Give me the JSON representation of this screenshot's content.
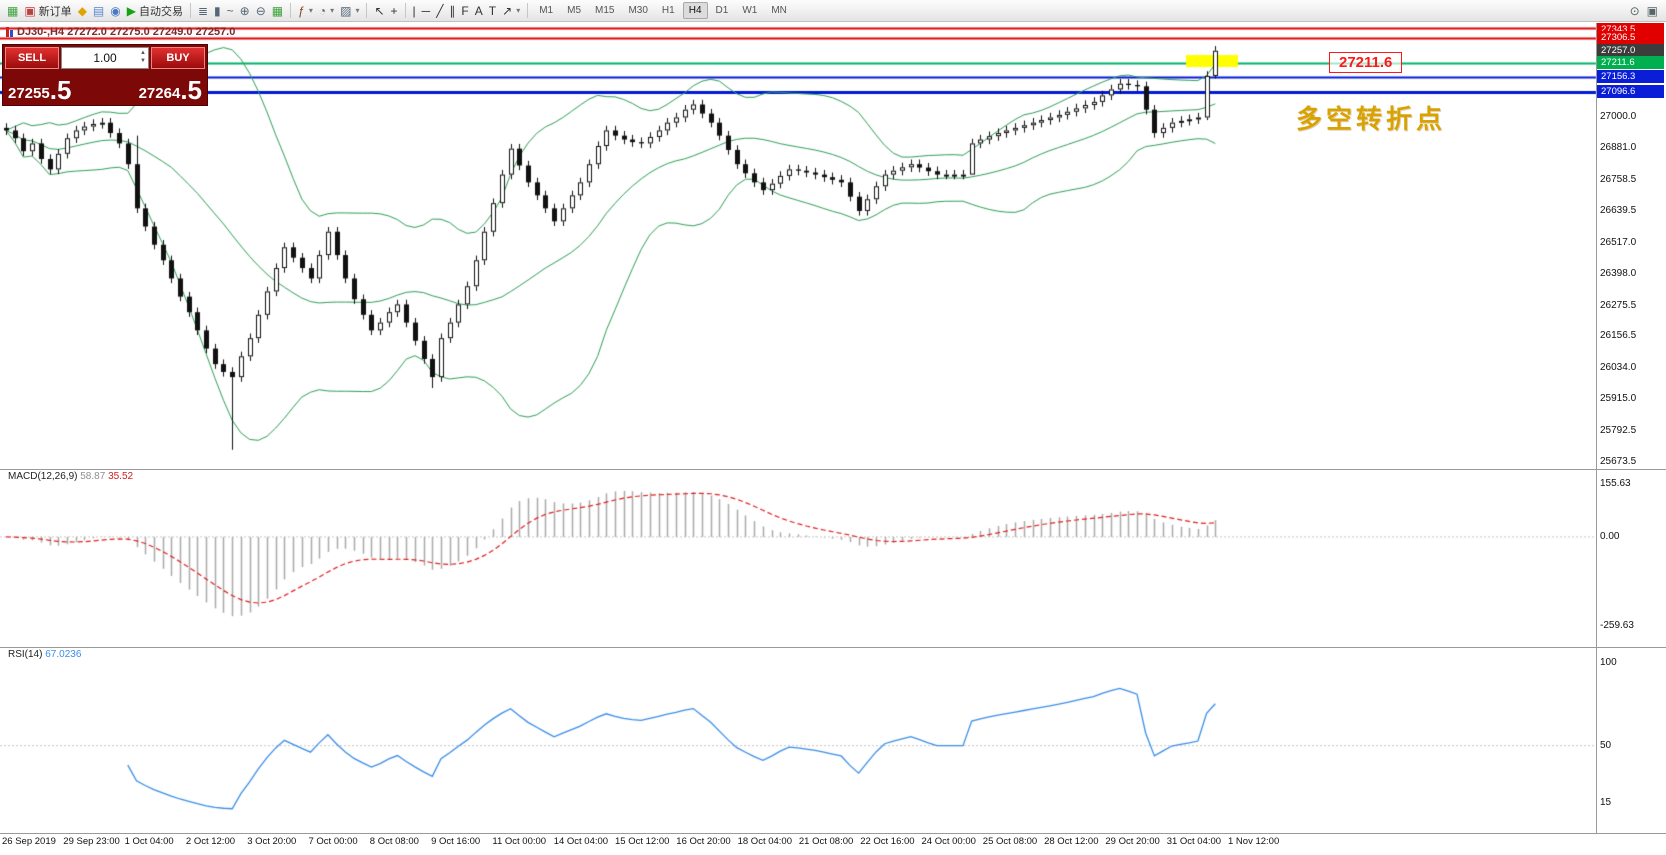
{
  "toolbar": {
    "items": [
      {
        "name": "new-chart-icon",
        "glyph": "▦",
        "color": "#3aa13a"
      },
      {
        "name": "new-order-button",
        "glyph": "▣",
        "color": "#c04040",
        "label": "新订单"
      },
      {
        "name": "alert-icon",
        "glyph": "◆",
        "color": "#e0a400"
      },
      {
        "name": "chart-window-icon",
        "glyph": "▤",
        "color": "#5a86d0"
      },
      {
        "name": "market-watch-icon",
        "glyph": "◉",
        "color": "#4a78c8"
      },
      {
        "name": "autotrade-button",
        "glyph": "▶",
        "color": "#18a018",
        "label": "自动交易"
      },
      {
        "sep": true
      },
      {
        "name": "bar-chart-icon",
        "glyph": "≣",
        "color": "#556677"
      },
      {
        "name": "candlestick-icon",
        "glyph": "▮",
        "color": "#556677"
      },
      {
        "name": "line-chart-icon",
        "glyph": "~",
        "color": "#556677"
      },
      {
        "name": "zoom-in-icon",
        "glyph": "⊕",
        "color": "#556677"
      },
      {
        "name": "zoom-out-icon",
        "glyph": "⊖",
        "color": "#556677"
      },
      {
        "name": "grid-icon",
        "glyph": "▦",
        "color": "#3aa13a"
      },
      {
        "sep": true
      },
      {
        "name": "indicators-icon",
        "glyph": "ƒ",
        "color": "#884422",
        "dropdown": true
      },
      {
        "name": "periods-icon",
        "glyph": "◔",
        "color": "#556677",
        "dropdown": true
      },
      {
        "name": "templates-icon",
        "glyph": "▨",
        "color": "#556677",
        "dropdown": true
      },
      {
        "sep": true
      },
      {
        "name": "cursor-icon",
        "glyph": "↖",
        "color": "#333333"
      },
      {
        "name": "crosshair-icon",
        "glyph": "+",
        "color": "#333333"
      },
      {
        "sep": true
      },
      {
        "name": "vline-icon",
        "glyph": "|",
        "color": "#333333"
      },
      {
        "name": "hline-icon",
        "glyph": "─",
        "color": "#333333"
      },
      {
        "name": "trendline-icon",
        "glyph": "╱",
        "color": "#333333"
      },
      {
        "name": "channel-icon",
        "glyph": "∥",
        "color": "#333333"
      },
      {
        "name": "fibonacci-icon",
        "glyph": "F",
        "color": "#333333"
      },
      {
        "name": "text-icon",
        "glyph": "A",
        "color": "#333333"
      },
      {
        "name": "label-icon",
        "glyph": "T",
        "color": "#333333"
      },
      {
        "name": "arrows-icon",
        "glyph": "↗",
        "color": "#333333",
        "dropdown": true
      },
      {
        "sep": true
      }
    ],
    "timeframes": [
      "M1",
      "M5",
      "M15",
      "M30",
      "H1",
      "H4",
      "D1",
      "W1",
      "MN"
    ],
    "active_timeframe": "H4",
    "right_icons": [
      {
        "name": "search-icon",
        "glyph": "⊙"
      },
      {
        "name": "window-icon",
        "glyph": "▣"
      }
    ]
  },
  "trade_panel": {
    "sell_label": "SELL",
    "buy_label": "BUY",
    "volume": "1.00",
    "sell_price_main": "27255",
    "sell_price_big": ".5",
    "buy_price_main": "27264",
    "buy_price_big": ".5"
  },
  "chart_data": {
    "type": "candlestick",
    "title": "DJ30-,H4 27272.0 27275.0 27249.0 27257.0",
    "symbol": "DJ30-",
    "period": "H4",
    "ohlc_display": {
      "open": "27272.0",
      "high": "27275.0",
      "low": "27249.0",
      "close": "27257.0"
    },
    "ylim": [
      25650,
      27360
    ],
    "y_axis_labels": [
      "27000.0",
      "26881.0",
      "26758.5",
      "26639.5",
      "26517.0",
      "26398.0",
      "26275.5",
      "26156.5",
      "26034.0",
      "25915.0",
      "25792.5",
      "25673.5"
    ],
    "time_labels": [
      "26 Sep 2019",
      "29 Sep 23:00",
      "1 Oct 04:00",
      "2 Oct 12:00",
      "3 Oct 20:00",
      "7 Oct 00:00",
      "8 Oct 08:00",
      "9 Oct 16:00",
      "11 Oct 00:00",
      "14 Oct 04:00",
      "15 Oct 12:00",
      "16 Oct 20:00",
      "18 Oct 04:00",
      "21 Oct 08:00",
      "22 Oct 16:00",
      "24 Oct 00:00",
      "25 Oct 08:00",
      "28 Oct 12:00",
      "29 Oct 20:00",
      "31 Oct 04:00",
      "1 Nov 12:00"
    ],
    "candles": {
      "first_open": 26960,
      "default_wick": 18,
      "closes": [
        26950,
        26920,
        26870,
        26900,
        26840,
        26800,
        26860,
        26920,
        26950,
        26965,
        26975,
        26980,
        26940,
        26900,
        26820,
        26650,
        26580,
        26510,
        26450,
        26380,
        26310,
        26250,
        26180,
        26110,
        26050,
        26020,
        26000,
        26080,
        26150,
        26240,
        26330,
        26420,
        26500,
        26460,
        26420,
        26380,
        26470,
        26560,
        26470,
        26380,
        26300,
        26240,
        26180,
        26210,
        26250,
        26280,
        26210,
        26140,
        26070,
        26000,
        26150,
        26210,
        26280,
        26350,
        26450,
        26560,
        26670,
        26780,
        26880,
        26815,
        26750,
        26700,
        26650,
        26600,
        26650,
        26700,
        26750,
        26820,
        26890,
        26950,
        26930,
        26915,
        26905,
        26900,
        26925,
        26950,
        26980,
        27000,
        27030,
        27050,
        27015,
        26980,
        26930,
        26875,
        26820,
        26785,
        26750,
        26720,
        26745,
        26775,
        26800,
        26795,
        26788,
        26780,
        26770,
        26760,
        26750,
        26695,
        26640,
        26685,
        26735,
        26780,
        26795,
        26808,
        26820,
        26807,
        26793,
        26780,
        26780,
        26780,
        26780,
        26900,
        26915,
        26928,
        26940,
        26950,
        26960,
        26970,
        26980,
        26990,
        27000,
        27010,
        27022,
        27035,
        27048,
        27060,
        27085,
        27108,
        27130,
        27125,
        27120,
        27030,
        26940,
        26960,
        26980,
        26987,
        26993,
        27000,
        27160,
        27257
      ],
      "wick_overrides": [
        {
          "i": 15,
          "high": 26930
        },
        {
          "i": 26,
          "low": 25720
        },
        {
          "i": 49,
          "low": 25958
        },
        {
          "i": 111,
          "low": 26790
        },
        {
          "i": 138,
          "low": 26990
        },
        {
          "i": 139,
          "high": 27275,
          "low": 27150
        }
      ]
    },
    "overlays": {
      "bollinger": {
        "period": 20,
        "deviation": 2,
        "color": "#2f9e57"
      }
    },
    "hlines": [
      {
        "value": 27343.5,
        "color": "#e00000",
        "width": 2
      },
      {
        "value": 27306.5,
        "color": "#e00000",
        "width": 2
      },
      {
        "value": 27211.6,
        "color": "#00b26b",
        "width": 2
      },
      {
        "value": 27156.3,
        "color": "#0018d8",
        "width": 2
      },
      {
        "value": 27096.6,
        "color": "#0018d8",
        "width": 3
      }
    ],
    "price_tags": [
      {
        "label": "27343.5",
        "value": 27343.5,
        "bg": "#e00000"
      },
      {
        "label": "27306.5",
        "value": 27306.5,
        "bg": "#e00000"
      },
      {
        "label": "27257.0",
        "value": 27257.0,
        "bg": "#3c3c3c"
      },
      {
        "label": "27211.6",
        "value": 27211.6,
        "bg": "#00b050"
      },
      {
        "label": "27156.3",
        "value": 27156.3,
        "bg": "#0a1ed8"
      },
      {
        "label": "27096.6",
        "value": 27096.6,
        "bg": "#0a1ed8"
      }
    ],
    "annotations": {
      "highlight_rect": {
        "x": 1186,
        "y": 55,
        "width": 52,
        "height": 12,
        "color": "#ffff00"
      },
      "price_box": {
        "text": "27211.6",
        "color": "#ff1818"
      },
      "cn_text": {
        "text": "多空转折点",
        "color": "#d9a200"
      }
    },
    "indicators": [
      {
        "type": "macd",
        "name": "MACD(12,26,9)",
        "value_main": "58.87",
        "value_signal": "35.52",
        "params": [
          12,
          26,
          9
        ],
        "ylim": [
          -310,
          175
        ],
        "axis_labels": [
          "155.63",
          "0.00",
          "-259.63"
        ],
        "axis_values": [
          155.63,
          0,
          -259.63
        ],
        "hist_color": "#ababab",
        "signal_color": "#e02020"
      },
      {
        "type": "rsi",
        "name": "RSI(14)",
        "value": "67.0236",
        "params": [
          14
        ],
        "ylim": [
          0,
          105
        ],
        "axis_labels": [
          "100",
          "50",
          "15"
        ],
        "axis_values": [
          100,
          50,
          15
        ],
        "color": "#3b8ee8"
      }
    ]
  }
}
